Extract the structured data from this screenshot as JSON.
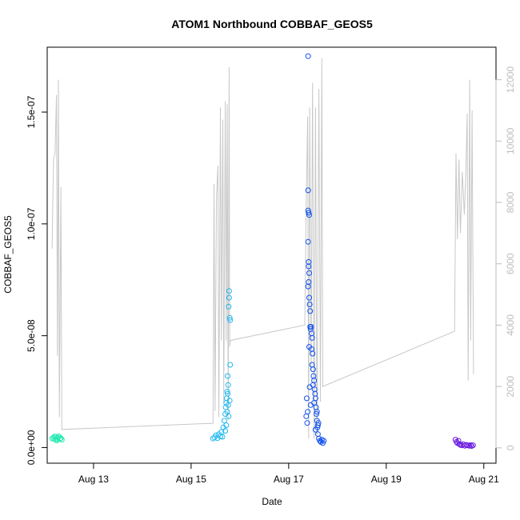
{
  "chart_data": {
    "type": "scatter",
    "title": "ATOM1 Northbound COBBAF_GEOS5",
    "xlabel": "Date",
    "ylabel": "COBBAF_GEOS5",
    "x_ticks": [
      "Aug 13",
      "Aug 15",
      "Aug 17",
      "Aug 19",
      "Aug 21"
    ],
    "y_ticks": [
      "0.0e+00",
      "5.0e-08",
      "1.0e-07",
      "1.5e-07"
    ],
    "y_right_ticks": [
      "0",
      "2000",
      "4000",
      "6000",
      "8000",
      "10000",
      "12000"
    ],
    "right_axis_color": "#bdbdbd",
    "altitude_line_color": "#c8c8c8",
    "xlim_days_aug": [
      12.05,
      21.25
    ],
    "ylim": [
      -7e-09,
      1.79e-07
    ],
    "y_right_lim": [
      -500,
      13060
    ],
    "altitude_profile": [
      [
        12.15,
        6500
      ],
      [
        12.18,
        9400
      ],
      [
        12.21,
        9600
      ],
      [
        12.24,
        11500
      ],
      [
        12.26,
        3000
      ],
      [
        12.28,
        12000
      ],
      [
        12.3,
        1000
      ],
      [
        12.33,
        8500
      ],
      [
        12.35,
        600
      ],
      [
        15.45,
        800
      ],
      [
        15.47,
        8600
      ],
      [
        15.49,
        1200
      ],
      [
        15.52,
        8200
      ],
      [
        15.55,
        9200
      ],
      [
        15.57,
        1000
      ],
      [
        15.6,
        11100
      ],
      [
        15.62,
        3500
      ],
      [
        15.65,
        10700
      ],
      [
        15.67,
        1500
      ],
      [
        15.7,
        11300
      ],
      [
        15.72,
        3500
      ],
      [
        15.74,
        11200
      ],
      [
        15.76,
        900
      ],
      [
        15.78,
        12400
      ],
      [
        15.79,
        3300
      ],
      [
        15.8,
        3500
      ],
      [
        17.33,
        4000
      ],
      [
        17.36,
        8100
      ],
      [
        17.39,
        10800
      ],
      [
        17.41,
        300
      ],
      [
        17.43,
        11100
      ],
      [
        17.46,
        2500
      ],
      [
        17.49,
        11900
      ],
      [
        17.52,
        300
      ],
      [
        17.55,
        11100
      ],
      [
        17.58,
        400
      ],
      [
        17.62,
        11700
      ],
      [
        17.65,
        1500
      ],
      [
        17.68,
        12700
      ],
      [
        17.7,
        2000
      ],
      [
        20.4,
        3800
      ],
      [
        20.43,
        9600
      ],
      [
        20.46,
        6800
      ],
      [
        20.49,
        9400
      ],
      [
        20.52,
        7000
      ],
      [
        20.56,
        9000
      ],
      [
        20.6,
        7600
      ],
      [
        20.63,
        8900
      ],
      [
        20.66,
        10900
      ],
      [
        20.68,
        2200
      ],
      [
        20.71,
        12000
      ],
      [
        20.73,
        3500
      ],
      [
        20.76,
        11000
      ],
      [
        20.79,
        2400
      ]
    ],
    "series": [
      {
        "color": "#20e8b0",
        "points": [
          [
            12.15,
            4e-09
          ],
          [
            12.18,
            4.3e-09
          ],
          [
            12.21,
            3.6e-09
          ],
          [
            12.23,
            4.8e-09
          ],
          [
            12.25,
            3.2e-09
          ],
          [
            12.27,
            4.5e-09
          ],
          [
            12.29,
            5e-09
          ],
          [
            12.31,
            3.9e-09
          ],
          [
            12.33,
            4.2e-09
          ],
          [
            12.35,
            3.5e-09
          ],
          [
            12.2,
            4.9e-09
          ],
          [
            12.26,
            3.8e-09
          ]
        ]
      },
      {
        "color": "#20b8f0",
        "points": [
          [
            15.45,
            4e-09
          ],
          [
            15.48,
            4.5e-09
          ],
          [
            15.51,
            5.5e-09
          ],
          [
            15.54,
            4.2e-09
          ],
          [
            15.57,
            6e-09
          ],
          [
            15.6,
            5e-09
          ],
          [
            15.62,
            7e-09
          ],
          [
            15.64,
            4.8e-09
          ],
          [
            15.66,
            9e-09
          ],
          [
            15.68,
            1.2e-08
          ],
          [
            15.7,
            1.5e-08
          ],
          [
            15.71,
            1.8e-08
          ],
          [
            15.72,
            2e-08
          ],
          [
            15.73,
            2.2e-08
          ],
          [
            15.74,
            2.5e-08
          ],
          [
            15.75,
            3.2e-08
          ],
          [
            15.76,
            2.8e-08
          ],
          [
            15.77,
            6.3e-08
          ],
          [
            15.78,
            6.7e-08
          ],
          [
            15.79,
            5.8e-08
          ],
          [
            15.8,
            3.7e-08
          ],
          [
            15.78,
            7e-08
          ],
          [
            15.8,
            5.7e-08
          ],
          [
            15.76,
            1.9e-08
          ],
          [
            15.74,
            1.6e-08
          ],
          [
            15.79,
            2.1e-08
          ],
          [
            15.72,
            1e-08
          ],
          [
            15.7,
            7.5e-09
          ],
          [
            15.77,
            1.4e-08
          ],
          [
            15.75,
            2.4e-08
          ]
        ]
      },
      {
        "color": "#1050f0",
        "points": [
          [
            17.36,
            1.4e-08
          ],
          [
            17.37,
            2.2e-08
          ],
          [
            17.38,
            1.1e-08
          ],
          [
            17.39,
            1.6e-08
          ],
          [
            17.4,
            1.75e-07
          ],
          [
            17.4,
            1.15e-07
          ],
          [
            17.4,
            1.06e-07
          ],
          [
            17.41,
            1.05e-07
          ],
          [
            17.42,
            1.04e-07
          ],
          [
            17.4,
            9.2e-08
          ],
          [
            17.41,
            8.3e-08
          ],
          [
            17.41,
            8.1e-08
          ],
          [
            17.42,
            7.8e-08
          ],
          [
            17.41,
            7.4e-08
          ],
          [
            17.4,
            7.2e-08
          ],
          [
            17.42,
            6.7e-08
          ],
          [
            17.43,
            6.4e-08
          ],
          [
            17.44,
            6.1e-08
          ],
          [
            17.45,
            5.3e-08
          ],
          [
            17.46,
            5.4e-08
          ],
          [
            17.47,
            5.1e-08
          ],
          [
            17.48,
            4.9e-08
          ],
          [
            17.47,
            4.4e-08
          ],
          [
            17.49,
            4.2e-08
          ],
          [
            17.48,
            3.7e-08
          ],
          [
            17.5,
            3.5e-08
          ],
          [
            17.51,
            3.2e-08
          ],
          [
            17.52,
            3e-08
          ],
          [
            17.5,
            2.8e-08
          ],
          [
            17.53,
            2.6e-08
          ],
          [
            17.54,
            2.4e-08
          ],
          [
            17.55,
            2.2e-08
          ],
          [
            17.52,
            2e-08
          ],
          [
            17.56,
            1.8e-08
          ],
          [
            17.57,
            1.5e-08
          ],
          [
            17.58,
            1.2e-08
          ],
          [
            17.59,
            9e-09
          ],
          [
            17.6,
            6e-09
          ],
          [
            17.62,
            4e-09
          ],
          [
            17.64,
            3e-09
          ],
          [
            17.66,
            2.5e-09
          ],
          [
            17.68,
            3.5e-09
          ],
          [
            17.7,
            2e-09
          ],
          [
            17.72,
            3e-09
          ],
          [
            17.55,
            8e-09
          ],
          [
            17.58,
            1.6e-08
          ],
          [
            17.45,
            1.9e-08
          ],
          [
            17.43,
            2.7e-08
          ],
          [
            17.6,
            1e-08
          ],
          [
            17.61,
            1.1e-08
          ],
          [
            17.42,
            4.5e-08
          ],
          [
            17.44,
            5.4e-08
          ]
        ]
      },
      {
        "color": "#6a1ae0",
        "points": [
          [
            20.42,
            3.5e-09
          ],
          [
            20.44,
            2.5e-09
          ],
          [
            20.46,
            2e-09
          ],
          [
            20.48,
            3e-09
          ],
          [
            20.5,
            1.5e-09
          ],
          [
            20.52,
            1.2e-09
          ],
          [
            20.55,
            1e-09
          ],
          [
            20.58,
            1.5e-09
          ],
          [
            20.61,
            8e-10
          ],
          [
            20.64,
            1.2e-09
          ],
          [
            20.67,
            1e-09
          ],
          [
            20.7,
            8e-10
          ],
          [
            20.73,
            1.1e-09
          ],
          [
            20.75,
            7e-10
          ],
          [
            20.78,
            1e-09
          ]
        ]
      }
    ]
  }
}
